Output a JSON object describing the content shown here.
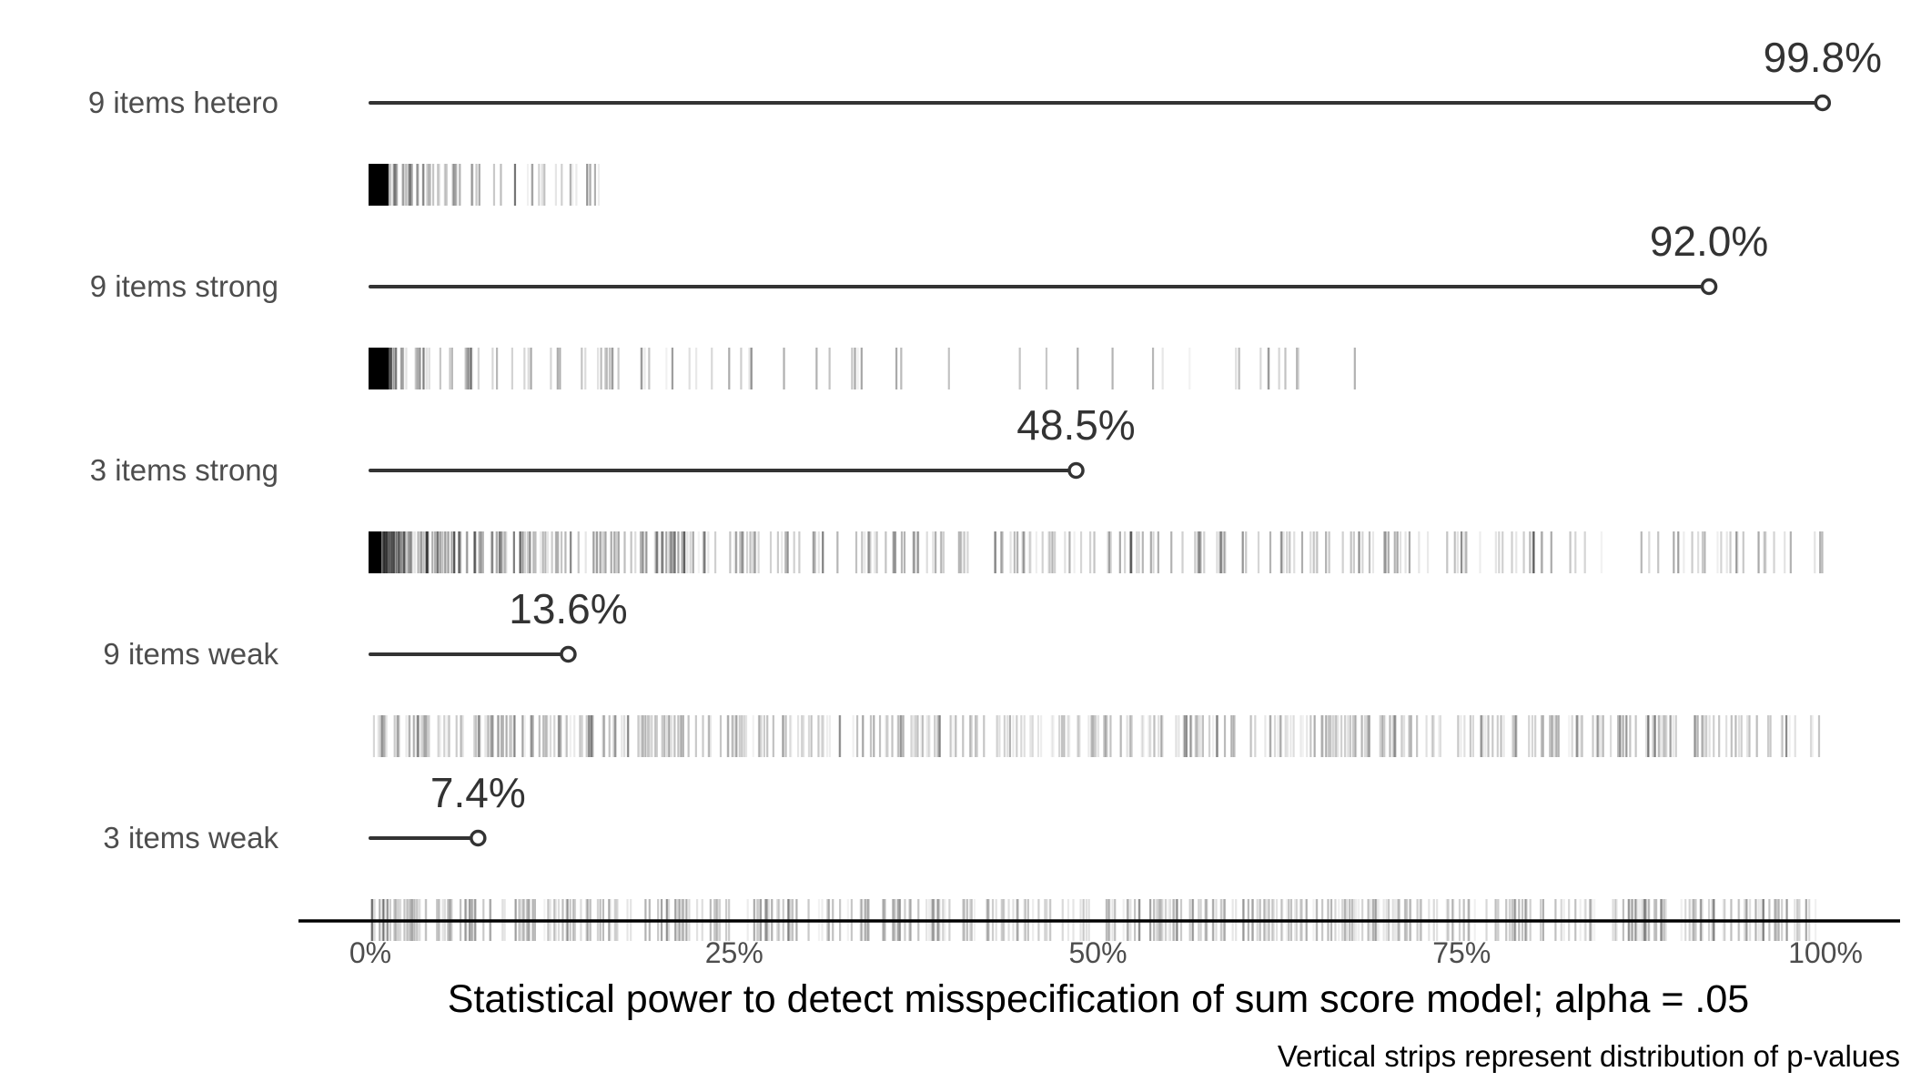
{
  "chart_data": {
    "type": "bar",
    "style": "lollipop with p-value strip distributions",
    "categories": [
      "9 items hetero",
      "9 items strong",
      "3 items strong",
      "9 items weak",
      "3 items weak"
    ],
    "values": [
      99.8,
      92.0,
      48.5,
      13.6,
      7.4
    ],
    "value_labels": [
      "99.8%",
      "92.0%",
      "48.5%",
      "13.6%",
      "7.4%"
    ],
    "xlabel": "Statistical power to detect misspecification of sum score model; alpha = .05",
    "caption": "Vertical strips represent distribution of p-values",
    "xlim": [
      0,
      100
    ],
    "xticks": [
      0,
      25,
      50,
      75,
      100
    ],
    "xtick_labels": [
      "0%",
      "25%",
      "50%",
      "75%",
      "100%"
    ],
    "grid": false,
    "legend": "none",
    "strip_extent_pct": [
      16,
      68,
      100,
      100,
      100
    ],
    "colors": {
      "lollipop": "#333333",
      "strip": "#000000",
      "axis": "#000000",
      "value_text": "#333333",
      "category_text": "#4d4d4d"
    }
  }
}
